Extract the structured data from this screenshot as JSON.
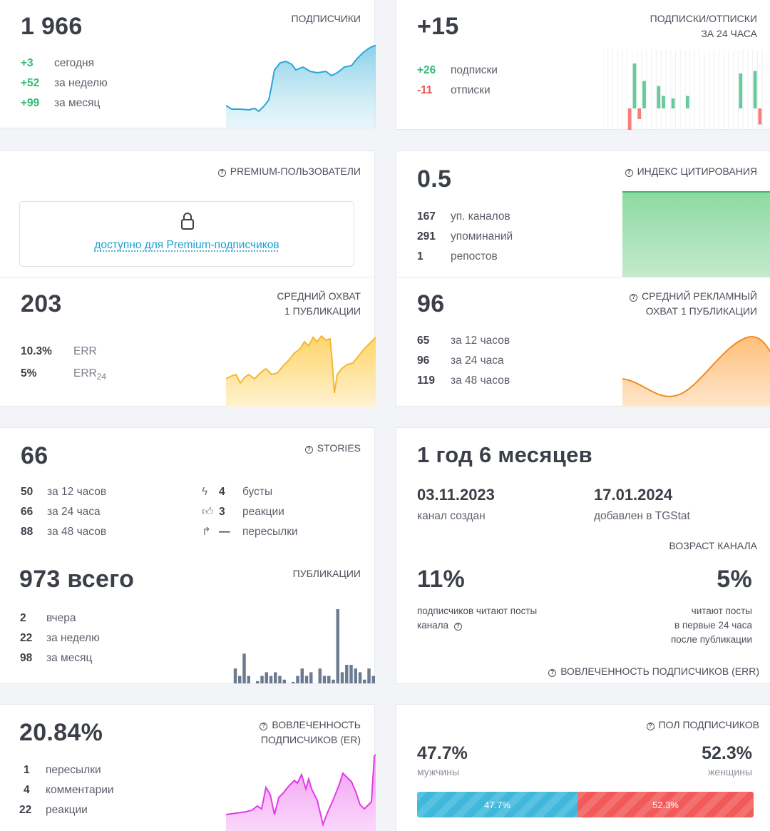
{
  "subscribers": {
    "value": "1 966",
    "title": "ПОДПИСЧИКИ",
    "stats": [
      {
        "n": "+3",
        "label": "сегодня"
      },
      {
        "n": "+52",
        "label": "за неделю"
      },
      {
        "n": "+99",
        "label": "за месяц"
      }
    ]
  },
  "subs_unsubs": {
    "value": "+15",
    "title_line1": "ПОДПИСКИ/ОТПИСКИ",
    "title_line2": "ЗА 24 ЧАСА",
    "subs_n": "+26",
    "subs_label": "подписки",
    "unsubs_n": "-11",
    "unsubs_label": "отписки",
    "bars_up": [
      0,
      0,
      0,
      0,
      0,
      0,
      0.9,
      0,
      0.55,
      0,
      0,
      0.45,
      0.25,
      0,
      0.2,
      0,
      0,
      0.25,
      0,
      0,
      0,
      0,
      0,
      0,
      0,
      0,
      0,
      0,
      0.7,
      0,
      0,
      0.75,
      0,
      0
    ],
    "bars_down": [
      0,
      0,
      0,
      0,
      0,
      0.6,
      0,
      0.3,
      0,
      0,
      0,
      0,
      0,
      0,
      0,
      0,
      0,
      0,
      0,
      0,
      0,
      0,
      0,
      0,
      0,
      0,
      0,
      0,
      0,
      0,
      0,
      0,
      0.45,
      0
    ]
  },
  "premium": {
    "title": "PREMIUM-ПОЛЬЗОВАТЕЛИ",
    "link": "доступно для Premium-подписчиков"
  },
  "citation": {
    "value": "0.5",
    "title": "ИНДЕКС ЦИТИРОВАНИЯ",
    "stats": [
      {
        "n": "167",
        "label": "уп. каналов"
      },
      {
        "n": "291",
        "label": "упоминаний"
      },
      {
        "n": "1",
        "label": "репостов"
      }
    ]
  },
  "avg_reach": {
    "value": "203",
    "title_line1": "СРЕДНИЙ ОХВАТ",
    "title_line2": "1 ПУБЛИКАЦИИ",
    "err_n": "10.3%",
    "err_label": "ERR",
    "err24_n": "5%",
    "err24_label": "ERR",
    "err24_sub": "24"
  },
  "ad_reach": {
    "value": "96",
    "title_line1": "СРЕДНИЙ РЕКЛАМНЫЙ",
    "title_line2": "ОХВАТ 1 ПУБЛИКАЦИИ",
    "stats": [
      {
        "n": "65",
        "label": "за 12 часов"
      },
      {
        "n": "96",
        "label": "за 24 часа"
      },
      {
        "n": "119",
        "label": "за 48 часов"
      }
    ]
  },
  "stories": {
    "value": "66",
    "title": "STORIES",
    "left": [
      {
        "n": "50",
        "label": "за 12 часов"
      },
      {
        "n": "66",
        "label": "за 24 часа"
      },
      {
        "n": "88",
        "label": "за 48 часов"
      }
    ],
    "right": [
      {
        "icon": "boost-icon",
        "n": "4",
        "label": "бусты"
      },
      {
        "icon": "thumbs-up-icon",
        "n": "3",
        "label": "реакции"
      },
      {
        "icon": "forward-icon",
        "n": "—",
        "label": "пересылки"
      }
    ]
  },
  "publications": {
    "value": "973 всего",
    "title": "ПУБЛИКАЦИИ",
    "stats": [
      {
        "n": "2",
        "label": "вчера"
      },
      {
        "n": "22",
        "label": "за неделю"
      },
      {
        "n": "98",
        "label": "за месяц"
      }
    ],
    "bars": [
      0.2,
      0.1,
      0.4,
      0.1,
      0,
      0.03,
      0.1,
      0.15,
      0.1,
      0.15,
      0.1,
      0.05,
      0,
      0.02,
      0.1,
      0.2,
      0.1,
      0.15,
      0,
      0.2,
      0.1,
      0.1,
      0.05,
      1.0,
      0.15,
      0.25,
      0.25,
      0.2,
      0.15,
      0.05,
      0.2,
      0.1
    ]
  },
  "age": {
    "value": "1 год 6 месяцев",
    "created_date": "03.11.2023",
    "created_label": "канал создан",
    "added_date": "17.01.2024",
    "added_label": "добавлен в TGStat",
    "title": "ВОЗРАСТ КАНАЛА"
  },
  "engagement": {
    "left_value": "11%",
    "left_line1": "подписчиков читают посты",
    "left_line2": "канала",
    "right_value": "5%",
    "right_line1": "читают посты",
    "right_line2": "в первые 24 часа",
    "right_line3": "после публикации",
    "title": "ВОВЛЕЧЕННОСТЬ ПОДПИСЧИКОВ (ERR)"
  },
  "er": {
    "value": "20.84%",
    "title_line1": "ВОВЛЕЧЕННОСТЬ",
    "title_line2": "ПОДПИСЧИКОВ (ER)",
    "stats": [
      {
        "n": "1",
        "label": "пересылки"
      },
      {
        "n": "4",
        "label": "комментарии"
      },
      {
        "n": "22",
        "label": "реакции"
      }
    ]
  },
  "gender": {
    "title": "ПОЛ ПОДПИСЧИКОВ",
    "male_value": "47.7%",
    "male_label": "мужчины",
    "female_value": "52.3%",
    "female_label": "женщины",
    "male_fraction": 0.477,
    "colors": {
      "male": "#3fb8dc",
      "female": "#f25a5a"
    }
  },
  "colors": {
    "green": "#35b878",
    "red": "#ef5350",
    "link": "#1a9fd0"
  }
}
